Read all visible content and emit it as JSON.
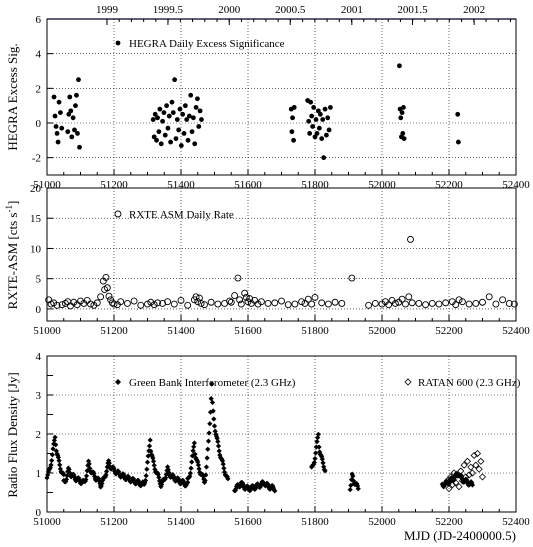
{
  "chart_data": [
    {
      "type": "scatter",
      "ylabel": "HEGRA Excess Sig.",
      "xlim": [
        51000,
        52400
      ],
      "ylim": [
        -3,
        6
      ],
      "x_ticks": [
        51000,
        51200,
        51400,
        51600,
        51800,
        52000,
        52200,
        52400
      ],
      "y_ticks": [
        -2,
        0,
        2,
        4,
        6
      ],
      "top_axis": {
        "labels": [
          "1999",
          "1999.5",
          "2000",
          "2000.5",
          "2001",
          "2001.5",
          "2002"
        ],
        "mjd": [
          51179,
          51361,
          51544,
          51726,
          51910,
          52091,
          52275
        ]
      },
      "grid": true,
      "legend": [
        {
          "label": "HEGRA Daily Excess Significance",
          "marker": "filled-circle"
        }
      ],
      "series": [
        {
          "marker": "filled-circle",
          "x": [
            51021,
            51024,
            51027,
            51030,
            51033,
            51036,
            51040,
            51044,
            51062,
            51065,
            51068,
            51071,
            51074,
            51078,
            51082,
            51085,
            51088,
            51091,
            51094,
            51097,
            51317,
            51320,
            51323,
            51327,
            51330,
            51334,
            51337,
            51341,
            51345,
            51349,
            51353,
            51357,
            51361,
            51365,
            51369,
            51373,
            51377,
            51381,
            51385,
            51389,
            51393,
            51397,
            51401,
            51405,
            51409,
            51413,
            51417,
            51421,
            51425,
            51429,
            51433,
            51437,
            51441,
            51445,
            51449,
            51453,
            51457,
            51461,
            51729,
            51731,
            51733,
            51736,
            51738,
            51778,
            51781,
            51784,
            51787,
            51790,
            51793,
            51796,
            51800,
            51803,
            51806,
            51810,
            51813,
            51816,
            51820,
            51823,
            51826,
            51830,
            51834,
            51838,
            51842,
            51846,
            52052,
            52054,
            52056,
            52058,
            52060,
            52062,
            52064,
            52066,
            52226,
            52228
          ],
          "y": [
            1.5,
            0.4,
            -0.2,
            -0.6,
            -1.1,
            1.2,
            0.6,
            -0.3,
            -0.5,
            0.5,
            1.5,
            0.7,
            -0.8,
            0.3,
            -0.4,
            1.0,
            1.6,
            -0.6,
            2.5,
            -1.4,
            0.2,
            -0.8,
            0.5,
            -1.0,
            0.3,
            -0.5,
            0.8,
            -1.2,
            0.1,
            0.6,
            -0.7,
            1.0,
            -0.3,
            0.4,
            -1.1,
            1.2,
            0.6,
            2.5,
            -0.9,
            0.2,
            -0.4,
            0.8,
            -1.3,
            0.5,
            -0.6,
            1.0,
            0.2,
            -1.0,
            0.4,
            1.6,
            -0.5,
            0.3,
            -1.2,
            0.9,
            1.4,
            -0.2,
            0.7,
            0.2,
            0.8,
            -0.5,
            0.3,
            -1.0,
            0.9,
            1.3,
            0.1,
            -0.6,
            1.2,
            0.4,
            -0.2,
            0.9,
            -0.8,
            0.2,
            -0.6,
            0.7,
            -0.3,
            0.5,
            -0.9,
            0.2,
            -2.0,
            0.8,
            -0.7,
            0.3,
            -0.4,
            0.9,
            3.3,
            0.8,
            0.3,
            -0.8,
            0.6,
            -0.6,
            0.9,
            -0.9,
            0.5,
            -1.1
          ]
        }
      ]
    },
    {
      "type": "scatter",
      "ylabel": "RXTE-ASM [cts s",
      "ylabel_sup": "-1",
      "ylabel_end": "]",
      "xlim": [
        51000,
        52400
      ],
      "ylim": [
        -2,
        20
      ],
      "x_ticks": [
        51000,
        51200,
        51400,
        51600,
        51800,
        52000,
        52200,
        52400
      ],
      "y_ticks": [
        0,
        5,
        10,
        15,
        20
      ],
      "grid": true,
      "legend": [
        {
          "label": "RXTE ASM Daily Rate",
          "marker": "open-circle"
        }
      ],
      "series": [
        {
          "marker": "open-circle",
          "x": [
            51005,
            51012,
            51020,
            51030,
            51045,
            51055,
            51062,
            51070,
            51080,
            51090,
            51100,
            51110,
            51120,
            51130,
            51140,
            51150,
            51160,
            51168,
            51172,
            51176,
            51180,
            51185,
            51190,
            51195,
            51200,
            51210,
            51220,
            51240,
            51260,
            51280,
            51300,
            51310,
            51320,
            51330,
            51345,
            51360,
            51380,
            51400,
            51420,
            51440,
            51445,
            51450,
            51455,
            51460,
            51470,
            51490,
            51510,
            51530,
            51545,
            51550,
            51560,
            51570,
            51575,
            51580,
            51590,
            51595,
            51600,
            51605,
            51610,
            51620,
            51630,
            51640,
            51660,
            51680,
            51700,
            51720,
            51740,
            51760,
            51770,
            51780,
            51790,
            51800,
            51820,
            51840,
            51860,
            51880,
            51910,
            51960,
            51980,
            52000,
            52010,
            52020,
            52030,
            52040,
            52050,
            52060,
            52070,
            52080,
            52085,
            52090,
            52110,
            52130,
            52150,
            52170,
            52190,
            52210,
            52220,
            52230,
            52240,
            52260,
            52280,
            52300,
            52320,
            52340,
            52360,
            52380,
            52395
          ],
          "y": [
            1.5,
            0.8,
            1.0,
            0.6,
            0.7,
            0.9,
            1.2,
            0.5,
            1.1,
            0.7,
            1.3,
            0.9,
            1.4,
            0.8,
            0.6,
            1.0,
            2.0,
            4.6,
            3.2,
            5.2,
            3.5,
            2.1,
            1.5,
            1.0,
            0.8,
            0.7,
            1.2,
            0.9,
            1.3,
            0.6,
            0.8,
            1.1,
            0.7,
            1.0,
            0.9,
            1.2,
            0.8,
            1.4,
            0.6,
            1.5,
            2.0,
            1.2,
            1.8,
            0.9,
            0.7,
            1.1,
            0.8,
            0.9,
            1.3,
            1.1,
            2.2,
            5.1,
            1.5,
            0.8,
            2.6,
            1.9,
            1.2,
            1.7,
            0.9,
            1.4,
            0.8,
            1.2,
            0.9,
            1.0,
            1.3,
            0.7,
            0.8,
            1.2,
            0.9,
            1.6,
            0.8,
            1.9,
            1.0,
            0.8,
            1.1,
            0.9,
            5.1,
            0.6,
            0.9,
            0.8,
            1.2,
            0.7,
            1.4,
            0.9,
            1.1,
            1.6,
            0.8,
            2.0,
            11.5,
            1.0,
            0.9,
            0.7,
            0.9,
            0.8,
            1.0,
            1.2,
            0.7,
            1.5,
            1.2,
            0.8,
            0.9,
            1.1,
            2.0,
            0.8,
            1.5,
            0.9,
            0.8
          ]
        }
      ]
    },
    {
      "type": "scatter",
      "ylabel": "Radio Flux Density [Jy]",
      "xlabel": "MJD (JD-2400000.5)",
      "xlim": [
        51000,
        52400
      ],
      "ylim": [
        0,
        4
      ],
      "x_ticks": [
        51000,
        51200,
        51400,
        51600,
        51800,
        52000,
        52200,
        52400
      ],
      "y_ticks": [
        0,
        0.5,
        1,
        1.5,
        2,
        2.5,
        3,
        3.5,
        4
      ],
      "y_tick_labels": [
        "0",
        "",
        "1",
        "",
        "2",
        "",
        "3",
        "",
        "4"
      ],
      "grid": true,
      "legend": [
        {
          "label": "Green Bank Interferometer (2.3 GHz)",
          "marker": "filled-diamond"
        },
        {
          "label": "RATAN 600 (2.3 GHz)",
          "marker": "open-diamond"
        }
      ],
      "flares": [
        {
          "x0": 51000,
          "x1": 51050,
          "peak_x": 51025,
          "peak": 2.0,
          "base": 0.9
        },
        {
          "x0": 51050,
          "x1": 51110,
          "peak_x": 51065,
          "peak": 1.1,
          "base": 0.75
        },
        {
          "x0": 51110,
          "x1": 51160,
          "peak_x": 51125,
          "peak": 1.3,
          "base": 0.75
        },
        {
          "x0": 51160,
          "x1": 51290,
          "peak_x": 51185,
          "peak": 1.3,
          "base": 0.7
        },
        {
          "x0": 51290,
          "x1": 51340,
          "peak_x": 51308,
          "peak": 1.9,
          "base": 0.75
        },
        {
          "x0": 51340,
          "x1": 51420,
          "peak_x": 51360,
          "peak": 1.1,
          "base": 0.7
        },
        {
          "x0": 51420,
          "x1": 51470,
          "peak_x": 51440,
          "peak": 1.8,
          "base": 0.8
        },
        {
          "x0": 51470,
          "x1": 51540,
          "peak_x": 51492,
          "peak": 3.25,
          "base": 0.8
        },
        {
          "x0": 51560,
          "x1": 51600,
          "peak_x": 51580,
          "peak": 0.75,
          "base": 0.6
        },
        {
          "x0": 51600,
          "x1": 51680,
          "peak_x": 51650,
          "peak": 0.75,
          "base": 0.6
        },
        {
          "x0": 51790,
          "x1": 51830,
          "peak_x": 51810,
          "peak": 2.0,
          "base": 1.1
        },
        {
          "x0": 51905,
          "x1": 51930,
          "peak_x": 51912,
          "peak": 1.0,
          "base": 0.6
        },
        {
          "x0": 52180,
          "x1": 52270,
          "peak_x": 52230,
          "peak": 1.0,
          "base": 0.7
        }
      ],
      "series": [
        {
          "name": "Green Bank Interferometer (2.3 GHz)",
          "marker": "filled-diamond"
        },
        {
          "name": "RATAN 600 (2.3 GHz)",
          "marker": "open-diamond",
          "x": [
            52195,
            52200,
            52205,
            52210,
            52215,
            52220,
            52225,
            52230,
            52235,
            52240,
            52245,
            52250,
            52255,
            52260,
            52265,
            52270,
            52275,
            52280,
            52285,
            52290,
            52295,
            52300
          ],
          "y": [
            0.8,
            0.6,
            0.9,
            0.7,
            1.0,
            0.75,
            0.95,
            0.65,
            1.05,
            0.8,
            1.2,
            0.9,
            1.3,
            0.95,
            1.15,
            1.0,
            1.45,
            1.2,
            1.5,
            1.1,
            1.3,
            0.9
          ]
        }
      ]
    }
  ]
}
